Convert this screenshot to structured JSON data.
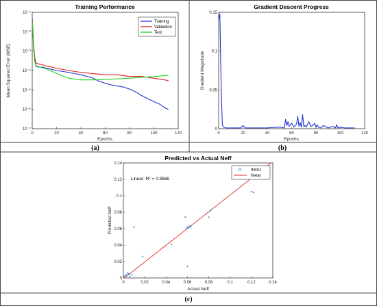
{
  "captions": [
    "(a)",
    "(b)",
    "(c)"
  ],
  "chart_data": [
    {
      "type": "line",
      "title": "Training Performance",
      "xlabel": "Epochs",
      "ylabel": "Mean Squared Error (MSE)",
      "xlim": [
        0,
        120
      ],
      "ylim": [
        1e-07,
        0.1
      ],
      "yscale": "log",
      "x_ticks": [
        0,
        20,
        40,
        60,
        80,
        100,
        120
      ],
      "y_ticks": [
        1e-07,
        1e-06,
        1e-05,
        0.0001,
        0.001,
        0.01,
        0.1
      ],
      "x_tick_labels": [
        "0",
        "20",
        "40",
        "60",
        "80",
        "100",
        "120"
      ],
      "y_tick_labels": [
        "10⁻⁷",
        "10⁻⁶",
        "10⁻⁵",
        "10⁻⁴",
        "10⁻³",
        "10⁻²",
        "10⁻¹"
      ],
      "legend_position": "top-right",
      "grid": false,
      "series": [
        {
          "name": "Training",
          "color": "#1f2fd4",
          "x": [
            0,
            1,
            2,
            3,
            5,
            8,
            12,
            20,
            30,
            40,
            45,
            50,
            55,
            60,
            65,
            70,
            75,
            80,
            85,
            90,
            95,
            100,
            105,
            110,
            112
          ],
          "y": [
            0.05,
            0.003,
            0.0004,
            0.00017,
            0.00015,
            0.00015,
            0.00013,
            0.0001,
            8e-05,
            6e-05,
            5e-05,
            4e-05,
            2.8e-05,
            2.2e-05,
            1.8e-05,
            1.6e-05,
            1.4e-05,
            1.1e-05,
            8e-06,
            5e-06,
            3.5e-06,
            2.5e-06,
            1.8e-06,
            1.1e-06,
            1e-06
          ]
        },
        {
          "name": "Validation",
          "color": "#e01a1a",
          "x": [
            0,
            1,
            2,
            3,
            5,
            8,
            12,
            20,
            30,
            40,
            50,
            60,
            70,
            80,
            90,
            100,
            110,
            112
          ],
          "y": [
            0.04,
            0.003,
            0.0005,
            0.00024,
            0.00022,
            0.0002,
            0.00017,
            0.00013,
            0.0001,
            8e-05,
            7e-05,
            6e-05,
            6e-05,
            5e-05,
            5e-05,
            4e-05,
            3.2e-05,
            3e-05
          ]
        },
        {
          "name": "Test",
          "color": "#19d019",
          "x": [
            0,
            1,
            2,
            3,
            5,
            8,
            12,
            20,
            30,
            40,
            50,
            60,
            70,
            80,
            90,
            100,
            110,
            112
          ],
          "y": [
            0.035,
            0.002,
            0.0003,
            0.00018,
            0.00016,
            0.00014,
            0.00012,
            7e-05,
            4e-05,
            3.3e-05,
            3.3e-05,
            3.5e-05,
            3.7e-05,
            4e-05,
            4.5e-05,
            4.8e-05,
            5.5e-05,
            5.6e-05
          ]
        }
      ]
    },
    {
      "type": "line",
      "title": "Gradient Descent Progress",
      "xlabel": "Epochs",
      "ylabel": "Gradient Magnitude",
      "xlim": [
        0,
        120
      ],
      "ylim": [
        0,
        0.15
      ],
      "x_ticks": [
        0,
        20,
        40,
        60,
        80,
        100,
        120
      ],
      "y_ticks": [
        0,
        0.05,
        0.1,
        0.15
      ],
      "x_tick_labels": [
        "0",
        "20",
        "40",
        "60",
        "80",
        "100",
        "120"
      ],
      "y_tick_labels": [
        "0",
        "0.05",
        "0.1",
        "0.15"
      ],
      "grid": false,
      "series": [
        {
          "name": "",
          "color": "#1f2fd4",
          "x": [
            0,
            1,
            2,
            3,
            4,
            6,
            10,
            18,
            20,
            22,
            30,
            40,
            50,
            54,
            55,
            56,
            57,
            58,
            60,
            62,
            64,
            65,
            66,
            67,
            68,
            69,
            70,
            71,
            72,
            74,
            76,
            78,
            79,
            80,
            81,
            82,
            84,
            86,
            90,
            94,
            96,
            97,
            98,
            100,
            104,
            108,
            112
          ],
          "y": [
            0.14,
            0.148,
            0.06,
            0.005,
            0.002,
            0.001,
            0.001,
            0.001,
            0.004,
            0.001,
            0.001,
            0.001,
            0.002,
            0.001,
            0.012,
            0.004,
            0.009,
            0.003,
            0.007,
            0.002,
            0.006,
            0.016,
            0.003,
            0.008,
            0.002,
            0.018,
            0.003,
            0.004,
            0.002,
            0.009,
            0.003,
            0.005,
            0.007,
            0.002,
            0.005,
            0.002,
            0.001,
            0.004,
            0.001,
            0.003,
            0.001,
            0.005,
            0.001,
            0.002,
            0.001,
            0.001,
            0.001
          ]
        }
      ]
    },
    {
      "type": "scatter",
      "title": "Predicted vs Actual Neff",
      "xlabel": "Actual Neff",
      "ylabel": "Predicted Neff",
      "xlim": [
        0,
        0.14
      ],
      "ylim": [
        0,
        0.14
      ],
      "x_ticks": [
        0,
        0.02,
        0.04,
        0.06,
        0.08,
        0.1,
        0.12,
        0.14
      ],
      "y_ticks": [
        0,
        0.02,
        0.04,
        0.06,
        0.08,
        0.1,
        0.12,
        0.14
      ],
      "x_tick_labels": [
        "0",
        "0.02",
        "0.04",
        "0.06",
        "0.08",
        "0.1",
        "0.12",
        "0.14"
      ],
      "y_tick_labels": [
        "0",
        "0.02",
        "0.04",
        "0.06",
        "0.08",
        "0.1",
        "0.12",
        "0.14"
      ],
      "annotation": "Linear: R² = 0.9566",
      "legend_position": "top-right",
      "grid": false,
      "series": [
        {
          "name": "data1",
          "color": "#3b8fd8",
          "x": [
            0.001,
            0.002,
            0.003,
            0.004,
            0.005,
            0.006,
            0.008,
            0.01,
            0.018,
            0.045,
            0.058,
            0.059,
            0.06,
            0.061,
            0.062,
            0.063,
            0.06,
            0.08,
            0.081,
            0.082,
            0.12,
            0.122
          ],
          "y": [
            0.002,
            0.004,
            0.003,
            0.006,
            0.005,
            0.002,
            0.004,
            0.062,
            0.026,
            0.041,
            0.074,
            0.06,
            0.062,
            0.061,
            0.063,
            0.062,
            0.014,
            0.074,
            0.081,
            0.083,
            0.105,
            0.104
          ]
        },
        {
          "name": "linear",
          "color": "#e02a2a",
          "fit": {
            "slope": 1.02,
            "intercept": -0.001
          }
        }
      ]
    }
  ]
}
